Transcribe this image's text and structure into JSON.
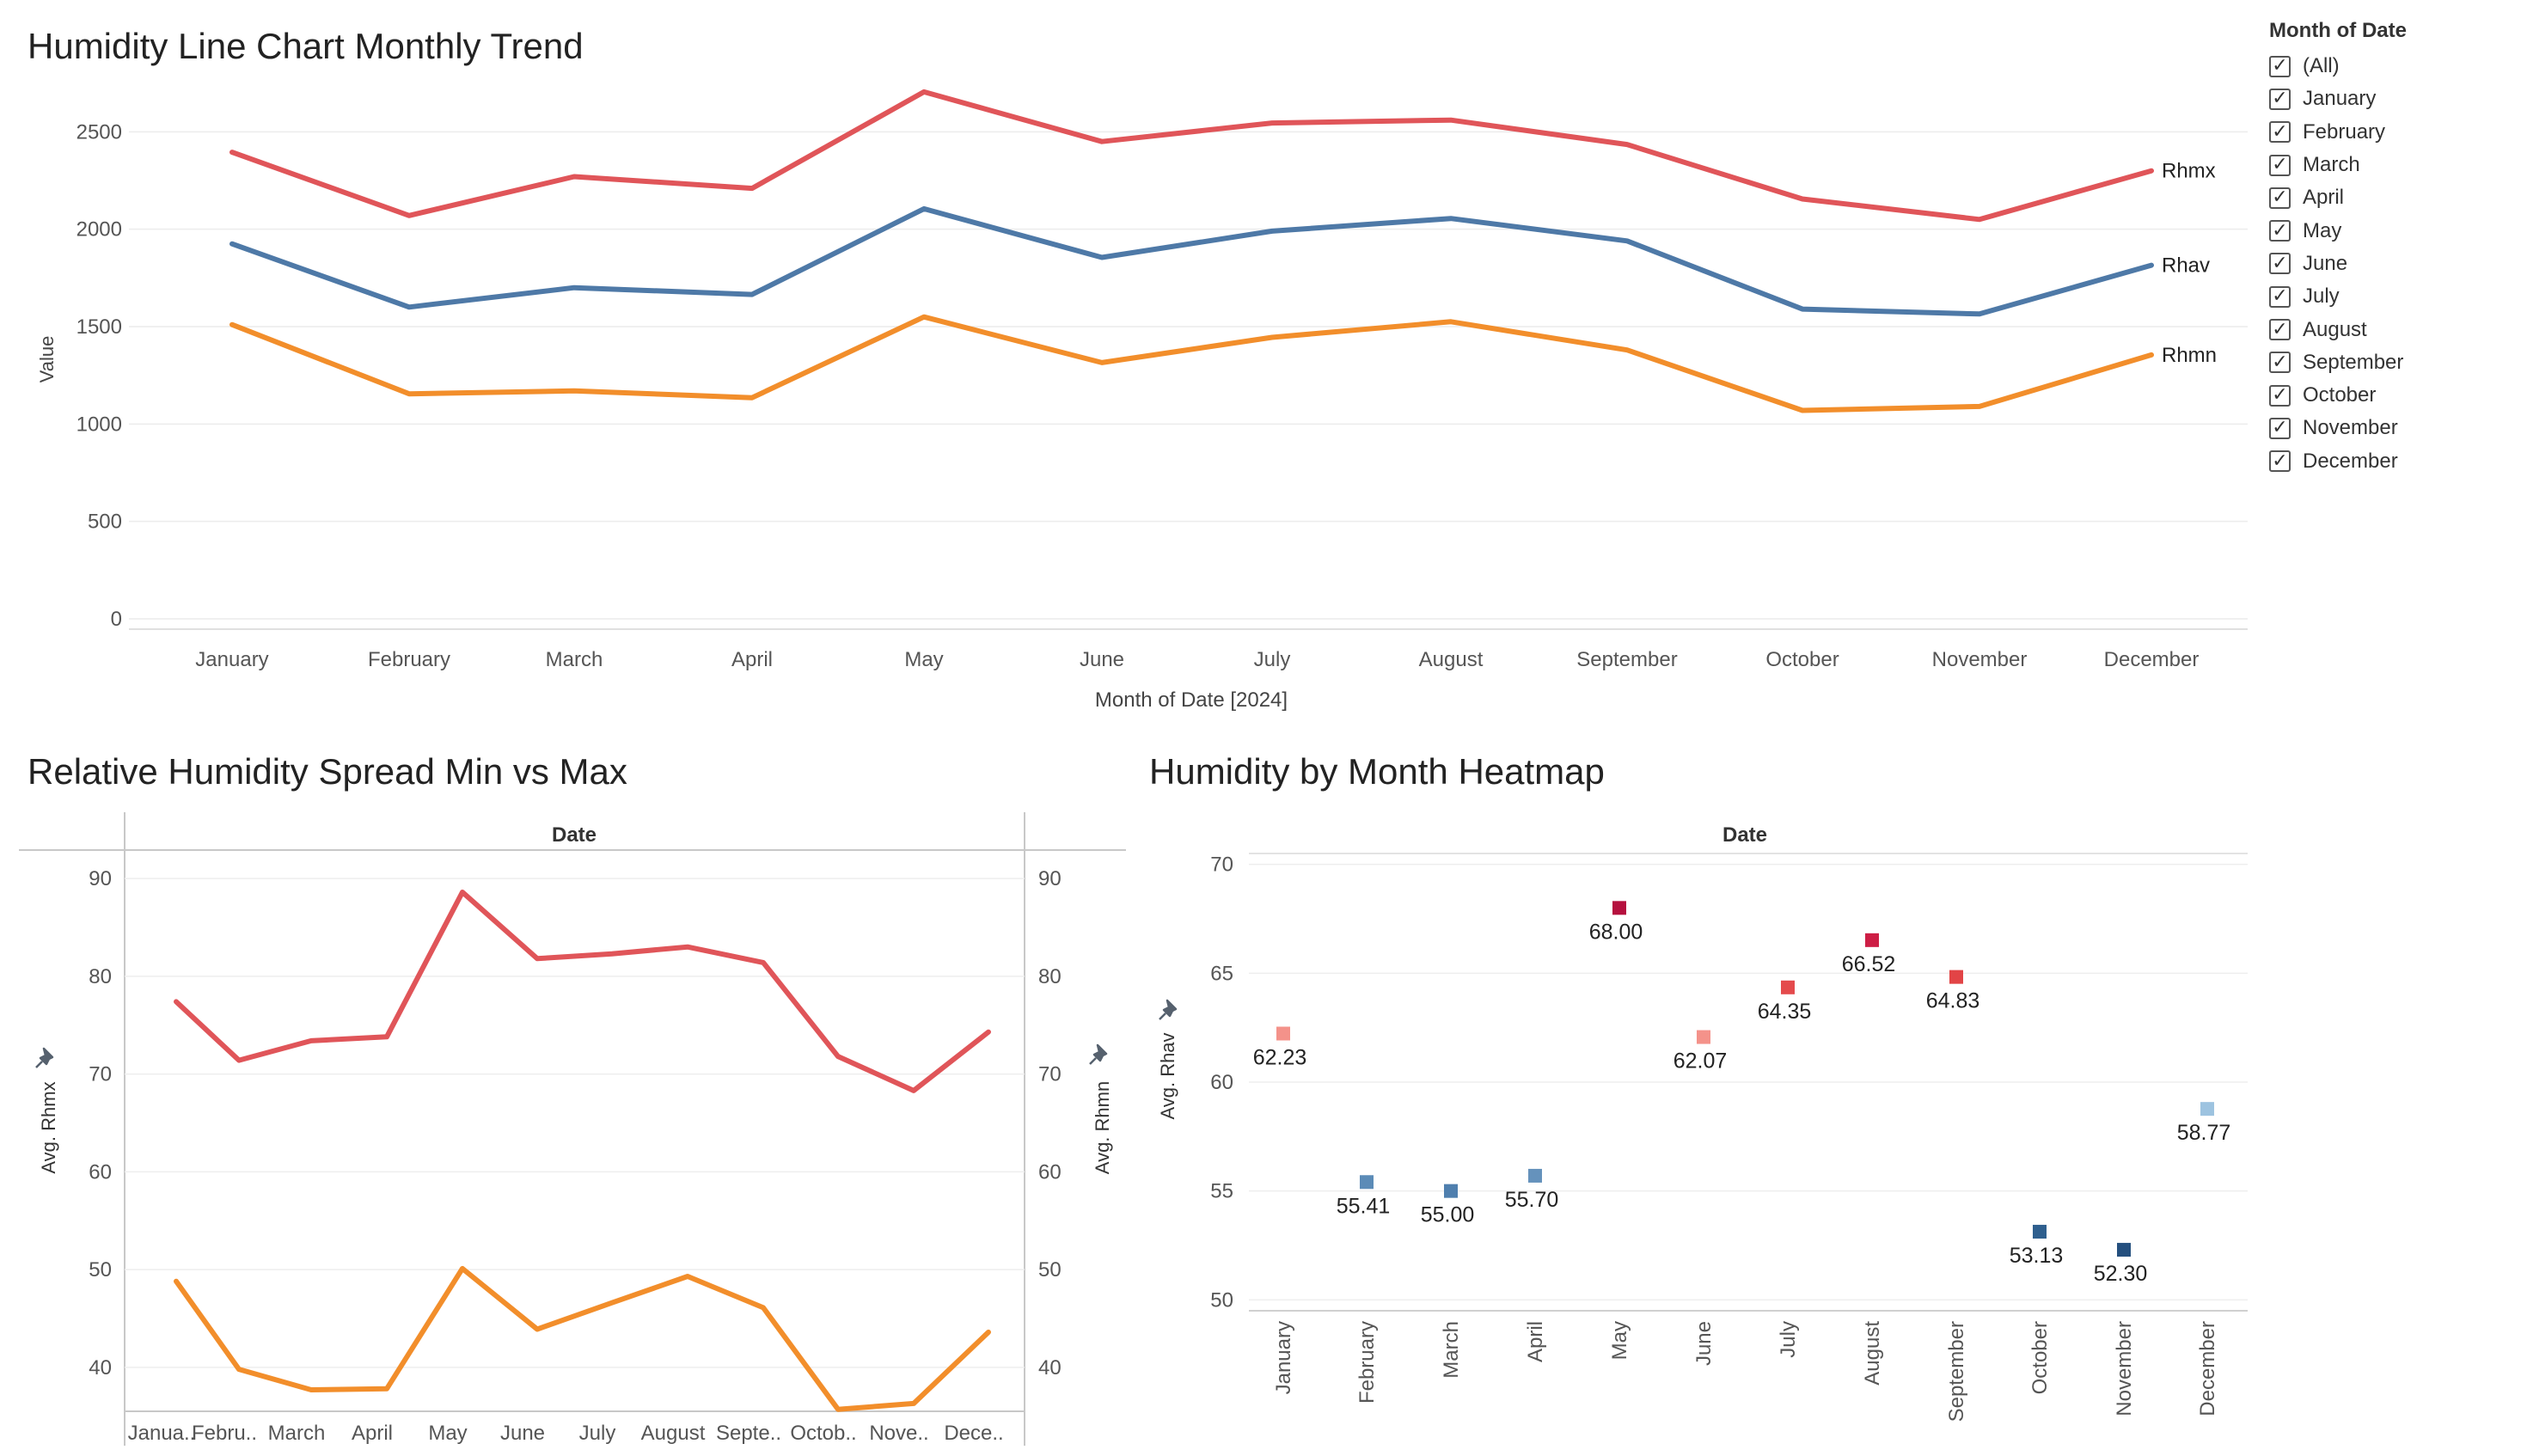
{
  "filter": {
    "title": "Month of Date",
    "items": [
      {
        "label": "(All)",
        "checked": true
      },
      {
        "label": "January",
        "checked": true
      },
      {
        "label": "February",
        "checked": true
      },
      {
        "label": "March",
        "checked": true
      },
      {
        "label": "April",
        "checked": true
      },
      {
        "label": "May",
        "checked": true
      },
      {
        "label": "June",
        "checked": true
      },
      {
        "label": "July",
        "checked": true
      },
      {
        "label": "August",
        "checked": true
      },
      {
        "label": "September",
        "checked": true
      },
      {
        "label": "October",
        "checked": true
      },
      {
        "label": "November",
        "checked": true
      },
      {
        "label": "December",
        "checked": true
      }
    ]
  },
  "chart_data": [
    {
      "type": "line",
      "title": "Humidity Line Chart Monthly Trend",
      "xlabel": "Month of Date [2024]",
      "ylabel": "Value",
      "categories": [
        "January",
        "February",
        "March",
        "April",
        "May",
        "June",
        "July",
        "August",
        "September",
        "October",
        "November",
        "December"
      ],
      "yticks": [
        "0",
        "500",
        "1000",
        "1500",
        "2000",
        "2500"
      ],
      "ylim": [
        0,
        2700
      ],
      "grid": true,
      "series": [
        {
          "name": "Rhmx",
          "color": "#e05559",
          "values": [
            2395,
            2070,
            2270,
            2210,
            2705,
            2450,
            2545,
            2560,
            2435,
            2155,
            2050,
            2300
          ]
        },
        {
          "name": "Rhav",
          "color": "#4e79a7",
          "values": [
            1925,
            1600,
            1700,
            1665,
            2105,
            1855,
            1990,
            2055,
            1940,
            1590,
            1565,
            1815
          ]
        },
        {
          "name": "Rhmn",
          "color": "#f28e2b",
          "values": [
            1510,
            1155,
            1170,
            1135,
            1550,
            1315,
            1445,
            1525,
            1380,
            1070,
            1090,
            1355
          ]
        }
      ]
    },
    {
      "type": "line",
      "title": "Relative Humidity Spread Min vs Max",
      "header": "Date",
      "categories": [
        "Janua..",
        "Febru..",
        "March",
        "April",
        "May",
        "June",
        "July",
        "August",
        "Septe..",
        "Octob..",
        "Nove..",
        "Dece.."
      ],
      "ylabel_left": "Avg. Rhmx",
      "ylabel_right": "Avg. Rhmn",
      "yticks_left": [
        "40",
        "50",
        "60",
        "70",
        "80",
        "90"
      ],
      "yticks_right": [
        "40",
        "50",
        "60",
        "70",
        "80",
        "90"
      ],
      "ylim": [
        35.5,
        91.5
      ],
      "grid": true,
      "series": [
        {
          "name": "Avg. Rhmx",
          "color": "#e05559",
          "values": [
            77.4,
            71.4,
            73.4,
            73.8,
            88.6,
            81.8,
            82.3,
            83.0,
            81.4,
            71.8,
            68.3,
            74.3
          ]
        },
        {
          "name": "Avg. Rhmn",
          "color": "#f28e2b",
          "values": [
            48.8,
            39.8,
            37.7,
            37.8,
            50.1,
            43.9,
            46.6,
            49.3,
            46.1,
            35.7,
            36.3,
            43.6
          ]
        }
      ]
    },
    {
      "type": "scatter",
      "title": "Humidity by Month Heatmap",
      "header": "Date",
      "ylabel": "Avg. Rhav",
      "categories": [
        "January",
        "February",
        "March",
        "April",
        "May",
        "June",
        "July",
        "August",
        "September",
        "October",
        "November",
        "December"
      ],
      "yticks": [
        "50",
        "55",
        "60",
        "65",
        "70"
      ],
      "ylim": [
        49.5,
        70.5
      ],
      "grid": true,
      "values": [
        62.23,
        55.41,
        55.0,
        55.7,
        68.0,
        62.07,
        64.35,
        66.52,
        64.83,
        53.13,
        52.3,
        58.77
      ],
      "labels": [
        "62.23",
        "55.41",
        "55.00",
        "55.70",
        "68.00",
        "62.07",
        "64.35",
        "66.52",
        "64.83",
        "53.13",
        "52.30",
        "58.77"
      ],
      "colors": [
        "#f4928a",
        "#5b8bb7",
        "#4f7fae",
        "#6592bc",
        "#b5103e",
        "#f4928a",
        "#e44a4c",
        "#cd1e45",
        "#e24446",
        "#2e5f8e",
        "#244f7e",
        "#9dc3e0"
      ]
    }
  ]
}
